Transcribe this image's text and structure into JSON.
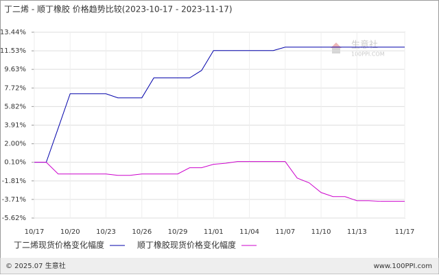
{
  "chart_data": {
    "type": "line",
    "title": "丁二烯 - 顺丁橡胶 价格趋势比较(2023-10-17 - 2023-11-17)",
    "categories": [
      "10/17",
      null,
      null,
      "10/20",
      null,
      null,
      "10/23",
      null,
      null,
      "10/26",
      null,
      null,
      "10/29",
      null,
      null,
      "11/01",
      null,
      null,
      "11/04",
      null,
      null,
      "11/07",
      null,
      null,
      "11/10",
      null,
      null,
      "11/13",
      null,
      null,
      null,
      "11/17"
    ],
    "series": [
      {
        "name": "丁二烯现货价格变化幅度",
        "color": "#0000aa",
        "values": [
          0.1,
          0.1,
          3.6,
          7.13,
          7.13,
          7.13,
          7.13,
          6.71,
          6.71,
          6.71,
          8.75,
          8.75,
          8.75,
          8.75,
          9.52,
          11.56,
          11.56,
          11.56,
          11.56,
          11.56,
          11.56,
          11.91,
          11.91,
          11.91,
          11.91,
          11.91,
          11.91,
          11.91,
          11.91,
          11.91,
          11.91,
          11.91
        ]
      },
      {
        "name": "顺丁橡胶现货价格变化幅度",
        "color": "#cc00cc",
        "values": [
          0.1,
          0.1,
          -1.1,
          -1.1,
          -1.1,
          -1.1,
          -1.1,
          -1.24,
          -1.24,
          -1.1,
          -1.1,
          -1.1,
          -1.1,
          -0.46,
          -0.46,
          -0.11,
          0.0,
          0.17,
          0.17,
          0.17,
          0.17,
          0.17,
          -1.52,
          -2.01,
          -3.0,
          -3.42,
          -3.42,
          -3.84,
          -3.84,
          -3.91,
          -3.91,
          -3.91
        ]
      }
    ],
    "ylim": [
      -5.62,
      13.44
    ],
    "yticks": [
      {
        "value": -5.62,
        "label": "-5.62%"
      },
      {
        "value": -3.71,
        "label": "-3.71%"
      },
      {
        "value": -1.81,
        "label": "-1.81%"
      },
      {
        "value": 0.1,
        "label": "0.10%"
      },
      {
        "value": 2.0,
        "label": "2.00%"
      },
      {
        "value": 3.91,
        "label": "3.91%"
      },
      {
        "value": 5.82,
        "label": "5.82%"
      },
      {
        "value": 7.72,
        "label": "7.72%"
      },
      {
        "value": 9.63,
        "label": "9.63%"
      },
      {
        "value": 11.53,
        "label": "11.53%"
      },
      {
        "value": 13.44,
        "label": "13.44%"
      }
    ],
    "grid": true,
    "legend": "bottom"
  },
  "watermark": {
    "name": "生意社",
    "site": "100PPI.COM"
  },
  "footer": {
    "copyright": "© 2025.07 生意社",
    "site": "www.100PPI.com"
  }
}
